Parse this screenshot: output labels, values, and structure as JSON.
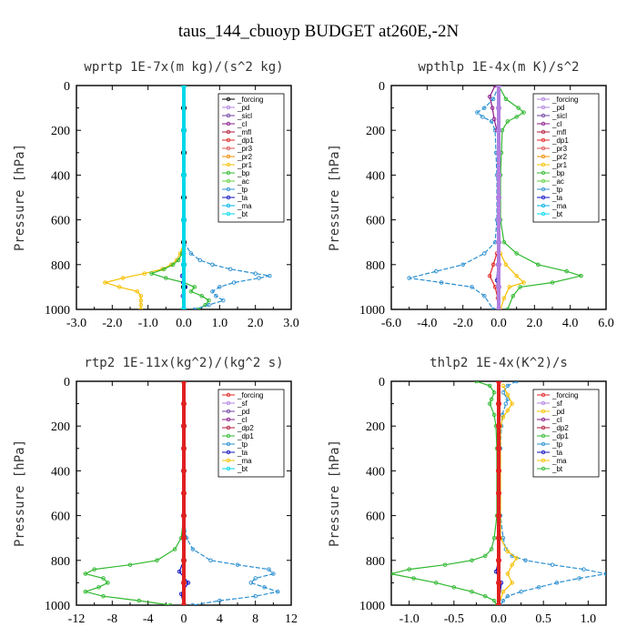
{
  "figure": {
    "title": "taus_144_cbuoyp  BUDGET at260E,-2N"
  },
  "chart_data": [
    {
      "type": "line",
      "title": "wprtp   1E-7x(m kg)/(s^2 kg)",
      "ylabel": "Pressure [hPa]",
      "xlim": [
        -3,
        3
      ],
      "ylim": [
        1000,
        0
      ],
      "xticks": [
        "-3.0",
        "-2.0",
        "-1.0",
        "0.0",
        "1.0",
        "2.0",
        "3.0"
      ],
      "xtick_vals": [
        -3,
        -2,
        -1,
        0,
        1,
        2,
        3
      ],
      "yticks": [
        "0",
        "200",
        "400",
        "600",
        "800",
        "1000"
      ],
      "ytick_vals": [
        0,
        200,
        400,
        600,
        800,
        1000
      ],
      "legend": [
        "_forcing",
        "_pd",
        "_sicl",
        "_cl",
        "_mfl",
        "_dp1",
        "_pr3",
        "_pr2",
        "_pr1",
        "_bp",
        "_ac",
        "_tp",
        "_ta",
        "_ma",
        "_bt"
      ],
      "series": [
        {
          "name": "_pr1",
          "color": "#f5c000",
          "y": [
            700,
            750,
            780,
            800,
            820,
            840,
            860,
            880,
            900,
            920,
            940,
            960,
            980,
            1000
          ],
          "x": [
            0,
            -0.1,
            -0.2,
            -0.35,
            -0.6,
            -1.1,
            -1.7,
            -2.2,
            -1.8,
            -1.3,
            -1.2,
            -1.2,
            -1.2,
            -1.2
          ]
        },
        {
          "name": "_bp",
          "color": "#2fb82f",
          "y": [
            700,
            750,
            780,
            800,
            820,
            840,
            860,
            880,
            900,
            920,
            940,
            960,
            980,
            1000
          ],
          "x": [
            0,
            -0.05,
            -0.15,
            -0.3,
            -0.55,
            -0.9,
            -0.5,
            0,
            0.3,
            0.2,
            0.5,
            0.7,
            0.6,
            0.4
          ]
        },
        {
          "name": "_tp",
          "color": "#2a8fd0",
          "y": [
            700,
            750,
            780,
            800,
            820,
            840,
            850,
            860,
            880,
            900,
            920,
            940,
            960,
            980,
            1000
          ],
          "x": [
            0,
            0.2,
            0.45,
            0.8,
            1.3,
            2.0,
            2.4,
            2.1,
            1.4,
            1.0,
            0.8,
            0.9,
            1.1,
            0.7,
            0.3
          ]
        },
        {
          "name": "_ta",
          "color": "#1010c0",
          "y": [
            750,
            800,
            850,
            880,
            900,
            940,
            1000
          ],
          "x": [
            0,
            0,
            -0.05,
            -0.02,
            0.05,
            -0.03,
            0
          ]
        },
        {
          "name": "_forcing",
          "color": "#000000",
          "y": [
            0,
            100,
            200,
            300,
            400,
            500,
            600,
            700,
            800,
            900,
            1000
          ],
          "x": [
            0,
            0,
            0,
            0,
            0,
            0,
            0,
            0,
            0,
            0,
            0
          ]
        },
        {
          "name": "_bt",
          "color": "#00d8e8",
          "y": [
            0,
            200,
            400,
            600,
            800,
            1000
          ],
          "x": [
            0,
            0,
            0,
            0,
            0,
            0
          ]
        }
      ]
    },
    {
      "type": "line",
      "title": "wpthlp   1E-4x(m K)/s^2",
      "ylabel": "Pressure [hPa]",
      "xlim": [
        -6,
        6
      ],
      "ylim": [
        1000,
        0
      ],
      "xticks": [
        "-6.0",
        "-4.0",
        "-2.0",
        "0.0",
        "2.0",
        "4.0",
        "6.0"
      ],
      "xtick_vals": [
        -6,
        -4,
        -2,
        0,
        2,
        4,
        6
      ],
      "yticks": [
        "0",
        "200",
        "400",
        "600",
        "800",
        "1000"
      ],
      "ytick_vals": [
        0,
        200,
        400,
        600,
        800,
        1000
      ],
      "legend": [
        "_forcing",
        "_pd",
        "_sicl",
        "_cl",
        "_mfl",
        "_dp1",
        "_pr3",
        "_pr2",
        "_pr1",
        "_bp",
        "_ac",
        "_tp",
        "_ta",
        "_ma",
        "_bt"
      ],
      "series": [
        {
          "name": "_tp",
          "color": "#2a8fd0",
          "y": [
            0,
            60,
            100,
            120,
            140,
            160,
            200,
            300,
            400,
            600,
            700,
            750,
            800,
            830,
            860,
            880,
            900,
            940,
            1000
          ],
          "x": [
            0,
            -0.3,
            -0.8,
            -1.2,
            -0.9,
            -0.4,
            -0.2,
            -0.15,
            -0.1,
            -0.1,
            -0.2,
            -0.8,
            -2.0,
            -3.5,
            -5.0,
            -3.2,
            -1.5,
            -0.8,
            -0.3
          ]
        },
        {
          "name": "_bp",
          "color": "#2fb82f",
          "y": [
            0,
            60,
            100,
            120,
            140,
            160,
            200,
            300,
            400,
            600,
            700,
            750,
            800,
            830,
            850,
            880,
            900,
            940,
            1000
          ],
          "x": [
            0,
            0.4,
            1.1,
            1.4,
            1.0,
            0.5,
            0.2,
            0.15,
            0.1,
            0.1,
            0.3,
            1.0,
            2.2,
            3.8,
            4.6,
            3.0,
            1.2,
            0.8,
            0.5
          ]
        },
        {
          "name": "_pr1",
          "color": "#f5c000",
          "y": [
            750,
            800,
            850,
            880,
            900,
            950,
            1000
          ],
          "x": [
            0.1,
            0.4,
            1.0,
            1.4,
            0.6,
            0.3,
            0.1
          ]
        },
        {
          "name": "_cl",
          "color": "#8a1a8a",
          "y": [
            0,
            50,
            100,
            150,
            200
          ],
          "x": [
            -0.2,
            -0.5,
            -0.35,
            -0.25,
            -0.1
          ]
        },
        {
          "name": "_dp1",
          "color": "#e02020",
          "y": [
            750,
            800,
            850,
            900,
            950,
            1000
          ],
          "x": [
            -0.1,
            -0.3,
            -0.5,
            -0.2,
            -0.05,
            0
          ]
        },
        {
          "name": "_ta",
          "color": "#1010c0",
          "y": [
            0,
            200,
            600,
            800,
            870,
            1000
          ],
          "x": [
            0,
            0,
            0,
            -0.05,
            -0.1,
            0
          ]
        },
        {
          "name": "_forcing",
          "color": "#b080e0",
          "y": [
            0,
            100,
            200,
            300,
            400,
            500,
            600,
            700,
            800,
            900,
            1000
          ],
          "x": [
            0,
            0,
            0,
            0,
            0,
            0,
            0,
            0,
            0,
            0,
            0
          ]
        }
      ]
    },
    {
      "type": "line",
      "title": "rtp2   1E-11x(kg^2)/(kg^2 s)",
      "ylabel": "Pressure [hPa]",
      "xlim": [
        -12,
        12
      ],
      "ylim": [
        1000,
        0
      ],
      "xticks": [
        "-12",
        "-8",
        "-4",
        "0",
        "4",
        "8",
        "12"
      ],
      "xtick_vals": [
        -12,
        -8,
        -4,
        0,
        4,
        8,
        12
      ],
      "yticks": [
        "0",
        "200",
        "400",
        "600",
        "800",
        "1000"
      ],
      "ytick_vals": [
        0,
        200,
        400,
        600,
        800,
        1000
      ],
      "legend": [
        "_forcing",
        "_sf",
        "_pd",
        "_cl",
        "_dp2",
        "_dp1",
        "_tp",
        "_ta",
        "_ma",
        "_bt"
      ],
      "series": [
        {
          "name": "_dp1",
          "color": "#2fb82f",
          "y": [
            600,
            700,
            750,
            800,
            820,
            840,
            860,
            880,
            900,
            920,
            940,
            960,
            980,
            1000
          ],
          "x": [
            0,
            -0.3,
            -1.0,
            -3.0,
            -6.0,
            -10.0,
            -11.0,
            -9.0,
            -8.5,
            -9.5,
            -11.0,
            -9.0,
            -5.0,
            -1.5
          ]
        },
        {
          "name": "_tp",
          "color": "#2a8fd0",
          "y": [
            600,
            700,
            750,
            800,
            820,
            840,
            860,
            880,
            900,
            920,
            940,
            960,
            980,
            1000
          ],
          "x": [
            0,
            0.3,
            1.0,
            3.0,
            6.0,
            9.5,
            10.0,
            8.0,
            7.5,
            9.0,
            10.5,
            8.0,
            4.0,
            1.0
          ]
        },
        {
          "name": "_ta",
          "color": "#1010c0",
          "y": [
            800,
            850,
            900,
            950,
            1000
          ],
          "x": [
            0,
            -0.5,
            0.5,
            -0.3,
            0
          ]
        },
        {
          "name": "_bt",
          "color": "#00d8e8",
          "y": [
            0,
            200,
            400,
            600,
            800,
            1000
          ],
          "x": [
            0,
            0,
            0,
            0,
            0,
            0
          ]
        },
        {
          "name": "_forcing",
          "color": "#e02020",
          "y": [
            0,
            100,
            200,
            300,
            400,
            500,
            600,
            700,
            800,
            900,
            1000
          ],
          "x": [
            0,
            0,
            0,
            0,
            0,
            0,
            0,
            0,
            0,
            0,
            0
          ]
        }
      ]
    },
    {
      "type": "line",
      "title": "thlp2   1E-4x(K^2)/s",
      "ylabel": "Pressure [hPa]",
      "xlim": [
        -1.2,
        1.2
      ],
      "ylim": [
        1000,
        0
      ],
      "xticks": [
        "-1.0",
        "-0.5",
        "0.0",
        "0.5",
        "1.0"
      ],
      "xtick_vals": [
        -1.0,
        -0.5,
        0.0,
        0.5,
        1.0
      ],
      "yticks": [
        "0",
        "200",
        "400",
        "600",
        "800",
        "1000"
      ],
      "ytick_vals": [
        0,
        200,
        400,
        600,
        800,
        1000
      ],
      "legend": [
        "_forcing",
        "_sf",
        "_pd",
        "_cl",
        "_dp2",
        "_dp1",
        "_tp",
        "_ta",
        "_ma",
        "_bt"
      ],
      "series": [
        {
          "name": "_dp1",
          "color": "#2fb82f",
          "y": [
            0,
            20,
            50,
            80,
            100,
            150,
            200,
            300,
            600,
            700,
            750,
            780,
            800,
            820,
            840,
            860,
            880,
            900,
            920,
            940,
            960,
            980,
            1000
          ],
          "x": [
            -0.25,
            -0.1,
            -0.05,
            -0.08,
            -0.1,
            -0.05,
            -0.03,
            -0.02,
            -0.02,
            -0.05,
            -0.08,
            -0.15,
            -0.3,
            -0.6,
            -1.0,
            -1.2,
            -0.95,
            -0.7,
            -0.5,
            -0.3,
            -0.15,
            -0.05,
            -0.02
          ]
        },
        {
          "name": "_tp",
          "color": "#2a8fd0",
          "y": [
            0,
            20,
            50,
            80,
            100,
            150,
            200,
            300,
            600,
            700,
            750,
            780,
            800,
            820,
            840,
            860,
            880,
            900,
            920,
            940,
            960,
            980,
            1000
          ],
          "x": [
            0.2,
            0.1,
            0.05,
            0.1,
            0.08,
            0.04,
            0.03,
            0.02,
            0.02,
            0.05,
            0.08,
            0.15,
            0.3,
            0.6,
            0.95,
            1.2,
            0.9,
            0.65,
            0.45,
            0.25,
            0.1,
            0.05,
            0.02
          ]
        },
        {
          "name": "_pd",
          "color": "#f5c000",
          "y": [
            20,
            60,
            100,
            130,
            160,
            200,
            700,
            760,
            790,
            820,
            860,
            900,
            940,
            1000
          ],
          "x": [
            0.05,
            0.1,
            0.15,
            0.1,
            0.05,
            0.02,
            0.02,
            0.1,
            0.2,
            0.15,
            0.1,
            0.15,
            0.05,
            0
          ]
        },
        {
          "name": "_ta",
          "color": "#1010c0",
          "y": [
            0,
            800,
            850,
            900,
            1000
          ],
          "x": [
            0,
            0,
            -0.03,
            0.03,
            0
          ]
        },
        {
          "name": "_forcing",
          "color": "#e02020",
          "y": [
            0,
            100,
            200,
            300,
            400,
            500,
            600,
            700,
            800,
            900,
            1000
          ],
          "x": [
            0,
            0,
            0,
            0,
            0,
            0,
            0,
            0,
            0,
            0,
            0
          ]
        }
      ]
    }
  ]
}
